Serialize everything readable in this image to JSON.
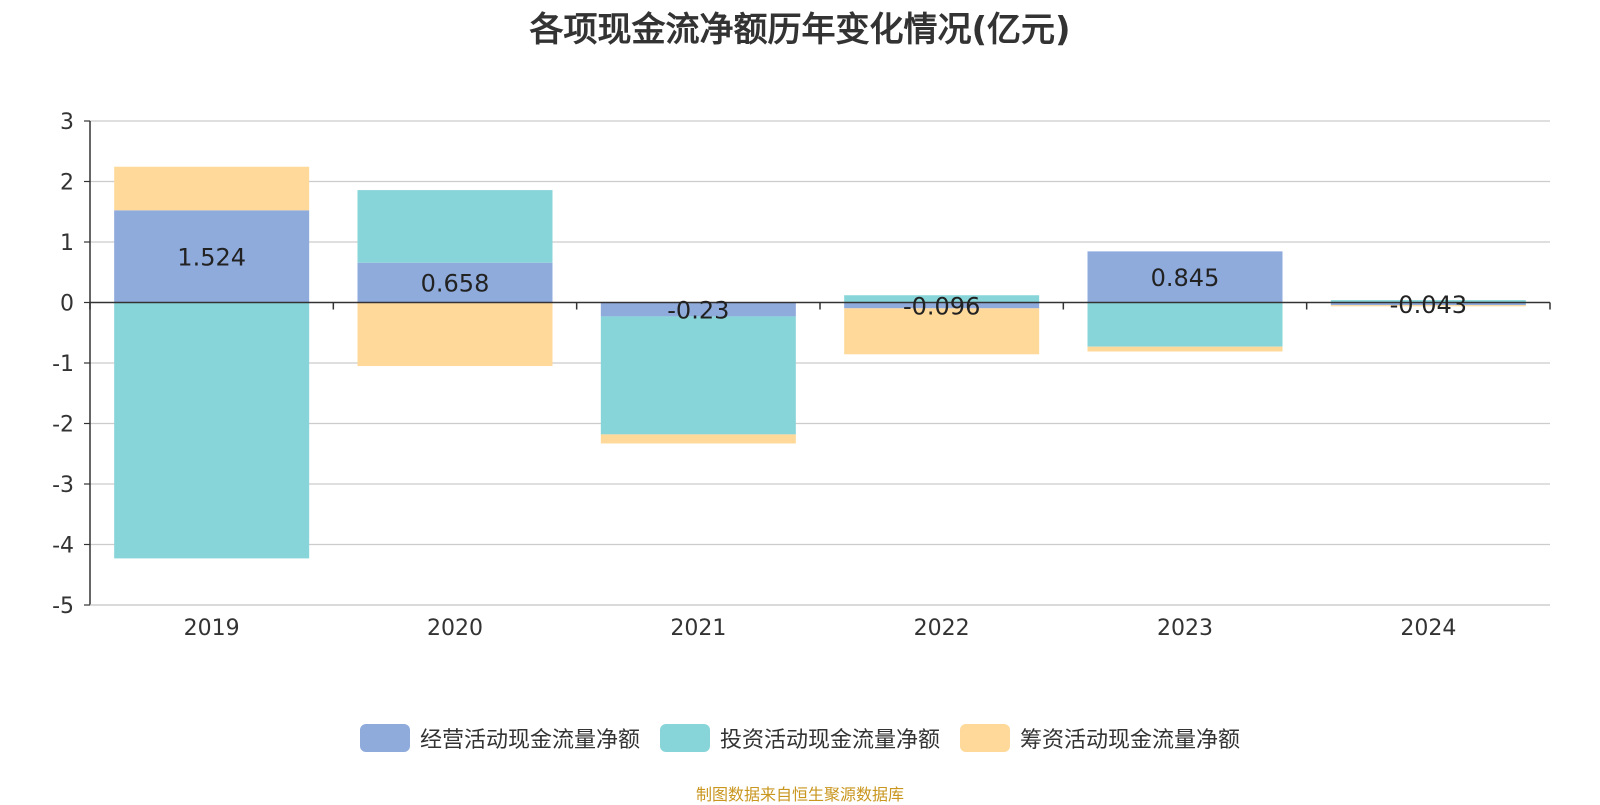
{
  "chart_data": {
    "type": "bar",
    "stacked": true,
    "title": "各项现金流净额历年变化情况(亿元)",
    "categories": [
      "2019",
      "2020",
      "2021",
      "2022",
      "2023",
      "2024"
    ],
    "ylim": [
      -5,
      3
    ],
    "yticks": [
      3,
      2,
      1,
      0,
      -1,
      -2,
      -3,
      -4,
      -5
    ],
    "grid": true,
    "legend_position": "bottom",
    "series": [
      {
        "name": "经营活动现金流量净额",
        "color": "#8FABDC",
        "values": [
          1.524,
          0.658,
          -0.23,
          -0.096,
          0.845,
          -0.043
        ]
      },
      {
        "name": "投资活动现金流量净额",
        "color": "#88D5D9",
        "values": [
          -4.23,
          1.2,
          -1.95,
          0.12,
          -0.73,
          0.04
        ]
      },
      {
        "name": "筹资活动现金流量净额",
        "color": "#FFD99A",
        "values": [
          0.72,
          -1.05,
          -0.15,
          -0.76,
          -0.08,
          -0.02
        ]
      }
    ],
    "data_labels": [
      "1.524",
      "0.658",
      "-0.23",
      "-0.096",
      "0.845",
      "-0.043"
    ]
  },
  "source": "制图数据来自恒生聚源数据库"
}
